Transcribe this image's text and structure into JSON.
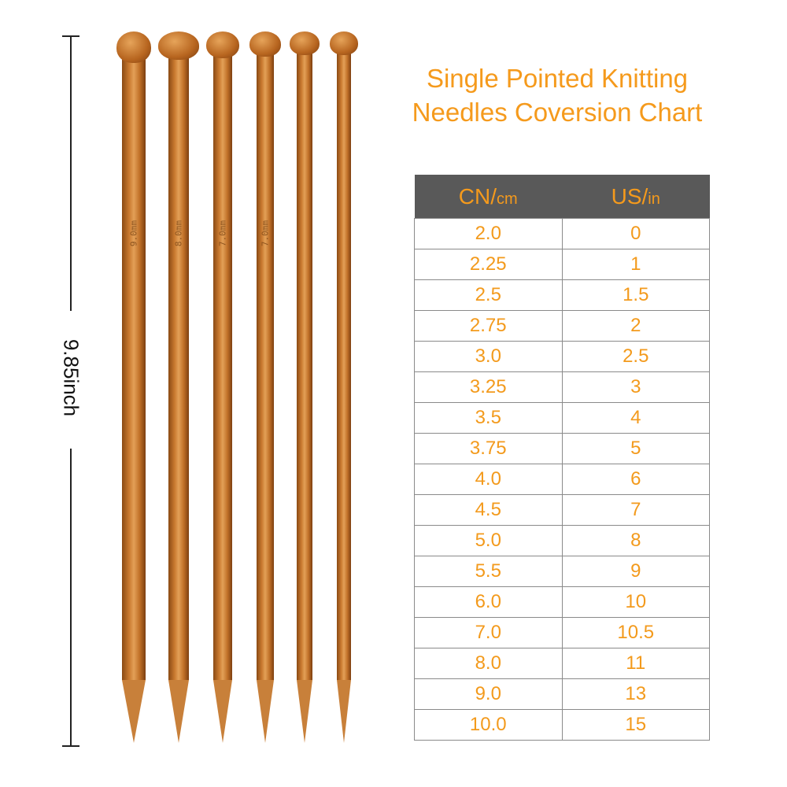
{
  "dimension": {
    "label": "9.85inch"
  },
  "needles": [
    {
      "engraving": "9.0mm"
    },
    {
      "engraving": "8.0mm"
    },
    {
      "engraving": "7.0mm"
    },
    {
      "engraving": "7.0mm"
    },
    {
      "engraving": ""
    },
    {
      "engraving": ""
    }
  ],
  "title": {
    "line1": "Single Pointed Knitting",
    "line2": "Needles Coversion Chart"
  },
  "table": {
    "headers": [
      {
        "main": "CN/",
        "unit": "cm"
      },
      {
        "main": "US/",
        "unit": "in"
      }
    ],
    "rows": [
      [
        "2.0",
        "0"
      ],
      [
        "2.25",
        "1"
      ],
      [
        "2.5",
        "1.5"
      ],
      [
        "2.75",
        "2"
      ],
      [
        "3.0",
        "2.5"
      ],
      [
        "3.25",
        "3"
      ],
      [
        "3.5",
        "4"
      ],
      [
        "3.75",
        "5"
      ],
      [
        "4.0",
        "6"
      ],
      [
        "4.5",
        "7"
      ],
      [
        "5.0",
        "8"
      ],
      [
        "5.5",
        "9"
      ],
      [
        "6.0",
        "10"
      ],
      [
        "7.0",
        "10.5"
      ],
      [
        "8.0",
        "11"
      ],
      [
        "9.0",
        "13"
      ],
      [
        "10.0",
        "15"
      ]
    ]
  },
  "colors": {
    "accent": "#f59a1c",
    "header_bg": "#595959"
  }
}
